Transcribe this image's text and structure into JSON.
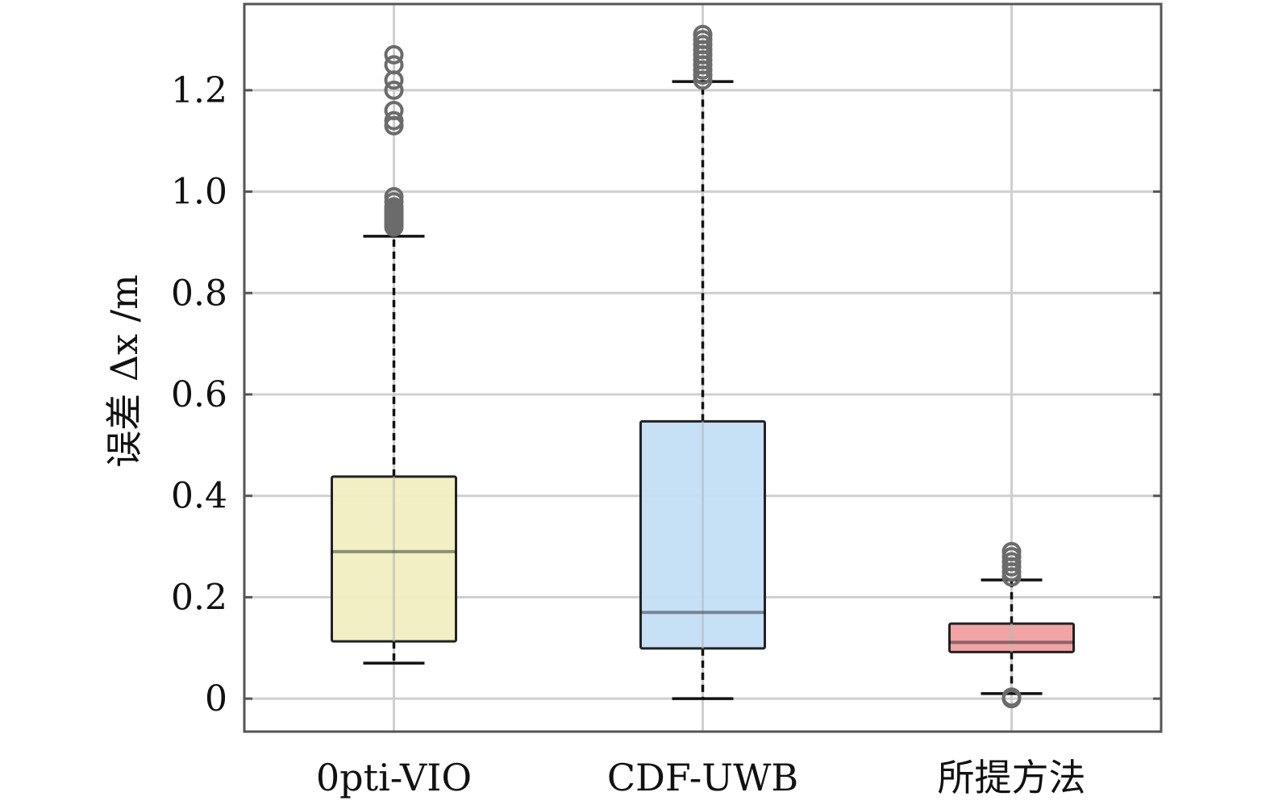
{
  "chart_data": {
    "type": "box",
    "title": "",
    "xlabel": "",
    "ylabel": "误差 Δx /m",
    "ylim": [
      -0.065,
      1.37
    ],
    "yticks": [
      0,
      0.2,
      0.4,
      0.6,
      0.8,
      1.0,
      1.2
    ],
    "ytick_labels": [
      "0",
      "0.2",
      "0.4",
      "0.6",
      "0.8",
      "1.0",
      "1.2"
    ],
    "grid": true,
    "categories": [
      "0pti-VIO",
      "CDF-UWB",
      "所提方法"
    ],
    "boxes": [
      {
        "name": "0pti-VIO",
        "color": "#f0eec0",
        "whisker_low": 0.07,
        "q1": 0.113,
        "median": 0.29,
        "q3": 0.438,
        "whisker_high": 0.912,
        "outliers": [
          0.93,
          0.935,
          0.94,
          0.945,
          0.95,
          0.955,
          0.96,
          0.965,
          0.97,
          0.98,
          0.99,
          1.13,
          1.14,
          1.16,
          1.2,
          1.22,
          1.25,
          1.27
        ]
      },
      {
        "name": "CDF-UWB",
        "color": "#c3def5",
        "whisker_low": 0.0,
        "q1": 0.099,
        "median": 0.17,
        "q3": 0.547,
        "whisker_high": 1.217,
        "outliers": [
          1.22,
          1.23,
          1.24,
          1.25,
          1.26,
          1.27,
          1.28,
          1.29,
          1.3,
          1.31
        ]
      },
      {
        "name": "所提方法",
        "color": "#ef9fa0",
        "whisker_low": 0.01,
        "q1": 0.092,
        "median": 0.111,
        "q3": 0.148,
        "whisker_high": 0.234,
        "outliers": [
          0.0,
          0.003,
          0.24,
          0.25,
          0.26,
          0.27,
          0.28,
          0.29
        ]
      }
    ]
  }
}
